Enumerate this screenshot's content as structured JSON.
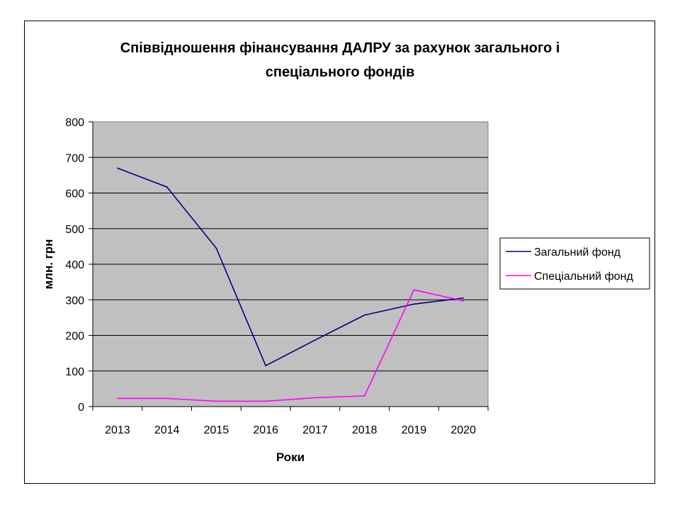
{
  "chart_data": {
    "type": "line",
    "title_lines": [
      "Співвідношення фінансування ДАЛРУ за рахунок загального і",
      "спеціального фондів"
    ],
    "xlabel": "Роки",
    "ylabel": "млн. грн",
    "categories": [
      "2013",
      "2014",
      "2015",
      "2016",
      "2017",
      "2018",
      "2019",
      "2020"
    ],
    "ylim": [
      0,
      800
    ],
    "yticks": [
      "0",
      "100",
      "200",
      "300",
      "400",
      "500",
      "600",
      "700",
      "800"
    ],
    "grid": true,
    "plot_background": "#c0c0c0",
    "legend_position": "right",
    "series": [
      {
        "name": "Загальний фонд",
        "color": "#000080",
        "values": [
          670,
          617,
          445,
          115,
          187,
          257,
          288,
          305
        ]
      },
      {
        "name": "Спеціальний фонд",
        "color": "#ff00ff",
        "values": [
          23,
          23,
          15,
          15,
          25,
          30,
          328,
          297
        ]
      }
    ]
  }
}
